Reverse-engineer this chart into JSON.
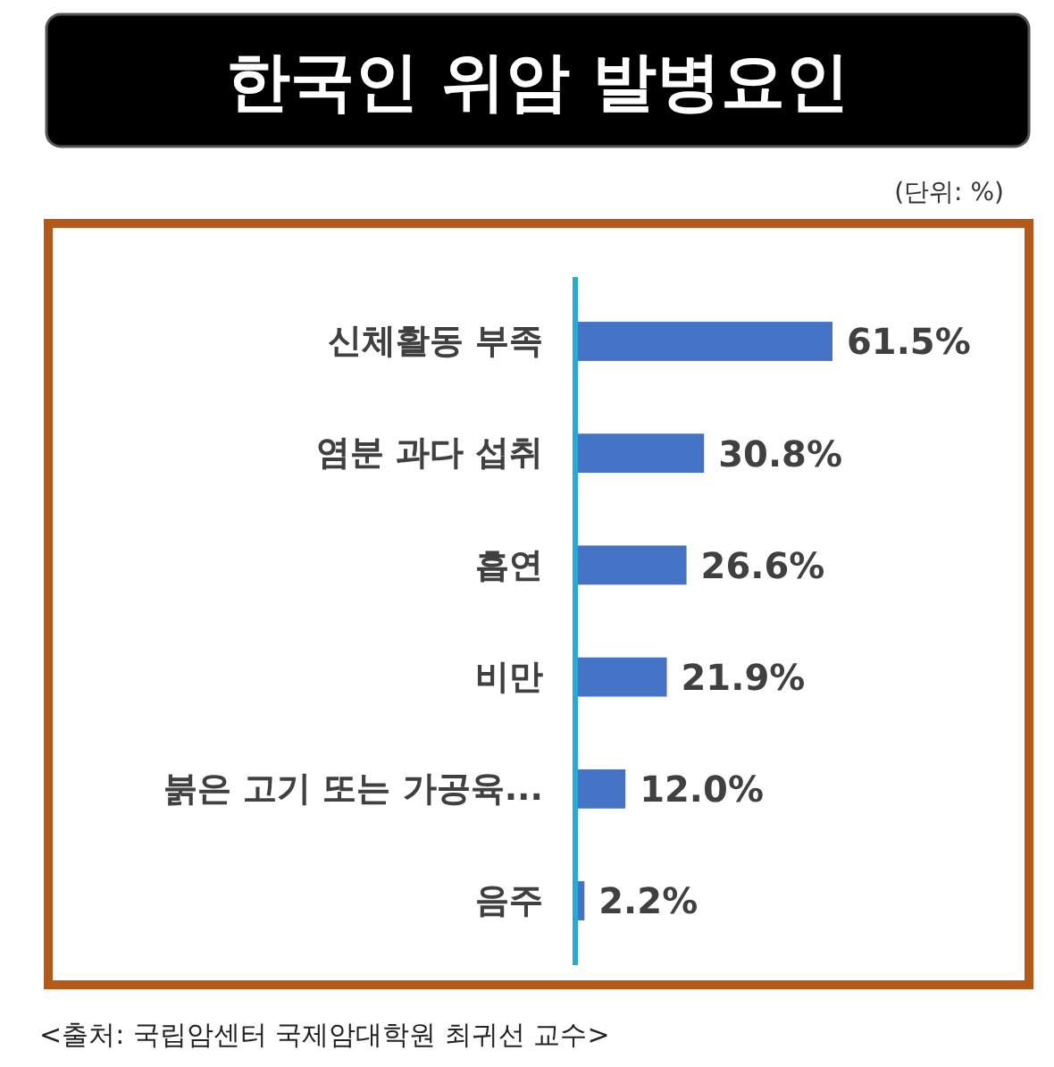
{
  "chart_data": {
    "type": "bar",
    "orientation": "horizontal",
    "title": "한국인 위암 발병요인",
    "categories": [
      "신체활동 부족",
      "염분 과다 섭취",
      "흡연",
      "비만",
      "붉은 고기 또는 가공육...",
      "음주"
    ],
    "values": [
      61.5,
      30.8,
      26.6,
      21.9,
      12.0,
      2.2
    ],
    "value_labels": [
      "61.5%",
      "30.8%",
      "26.6%",
      "21.9%",
      "12.0%",
      "2.2%"
    ],
    "color": "#4472c4",
    "tick_labels": "y",
    "annotations": [
      "(단위: %)",
      "<출처: 국립암센터 국제암대학원 최귀선 교수>"
    ]
  }
}
